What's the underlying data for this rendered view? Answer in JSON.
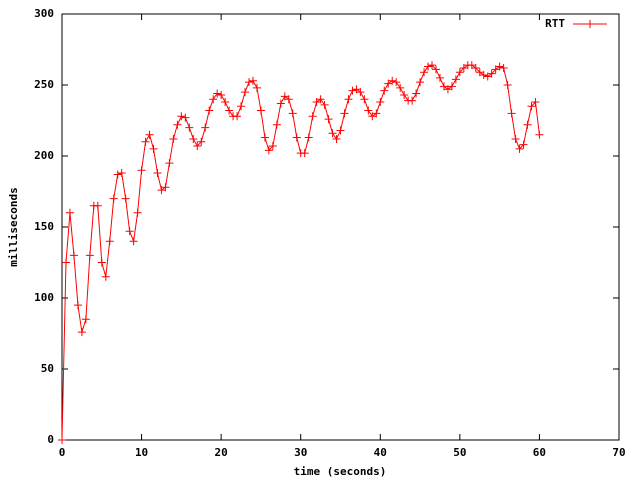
{
  "chart_data": {
    "type": "line",
    "xlabel": "time (seconds)",
    "ylabel": "milliseconds",
    "xlim": [
      0,
      70
    ],
    "xticks": [
      0,
      10,
      20,
      30,
      40,
      50,
      60,
      70
    ],
    "ylim": [
      0,
      300
    ],
    "yticks": [
      0,
      50,
      100,
      150,
      200,
      250,
      300
    ],
    "legend": "top-right",
    "x": [
      0,
      0.5,
      1,
      1.5,
      2,
      2.5,
      3,
      3.5,
      4,
      4.5,
      5,
      5.5,
      6,
      6.5,
      7,
      7.5,
      8,
      8.5,
      9,
      9.5,
      10,
      10.5,
      11,
      11.5,
      12,
      12.5,
      13,
      13.5,
      14,
      14.5,
      15,
      15.5,
      16,
      16.5,
      17,
      17.5,
      18,
      18.5,
      19,
      19.5,
      20,
      20.5,
      21,
      21.5,
      22,
      22.5,
      23,
      23.5,
      24,
      24.5,
      25,
      25.5,
      26,
      26.5,
      27,
      27.5,
      28,
      28.5,
      29,
      29.5,
      30,
      30.5,
      31,
      31.5,
      32,
      32.5,
      33,
      33.5,
      34,
      34.5,
      35,
      35.5,
      36,
      36.5,
      37,
      37.5,
      38,
      38.5,
      39,
      39.5,
      40,
      40.5,
      41,
      41.5,
      42,
      42.5,
      43,
      43.5,
      44,
      44.5,
      45,
      45.5,
      46,
      46.5,
      47,
      47.5,
      48,
      48.5,
      49,
      49.5,
      50,
      50.5,
      51,
      51.5,
      52,
      52.5,
      53,
      53.5,
      54,
      54.5,
      55,
      55.5,
      56,
      56.5,
      57,
      57.5,
      58,
      58.5,
      59,
      59.5,
      60
    ],
    "series": [
      {
        "name": "RTT",
        "color": "#ff0000",
        "values": [
          0,
          125,
          160,
          130,
          95,
          76,
          85,
          130,
          165,
          165,
          125,
          115,
          140,
          170,
          187,
          188,
          170,
          147,
          140,
          160,
          190,
          210,
          215,
          205,
          188,
          176,
          178,
          195,
          212,
          222,
          228,
          227,
          220,
          212,
          207,
          210,
          220,
          232,
          240,
          244,
          243,
          238,
          232,
          228,
          228,
          235,
          245,
          252,
          253,
          248,
          232,
          213,
          204,
          207,
          222,
          237,
          242,
          240,
          230,
          213,
          202,
          202,
          213,
          228,
          238,
          240,
          236,
          226,
          216,
          212,
          218,
          230,
          240,
          246,
          247,
          245,
          240,
          232,
          228,
          230,
          238,
          246,
          251,
          253,
          252,
          248,
          243,
          239,
          239,
          244,
          252,
          259,
          263,
          264,
          261,
          255,
          249,
          247,
          249,
          254,
          259,
          262,
          264,
          264,
          262,
          259,
          257,
          256,
          258,
          261,
          263,
          262,
          250,
          230,
          212,
          205,
          208,
          222,
          235,
          238,
          215
        ]
      }
    ]
  }
}
